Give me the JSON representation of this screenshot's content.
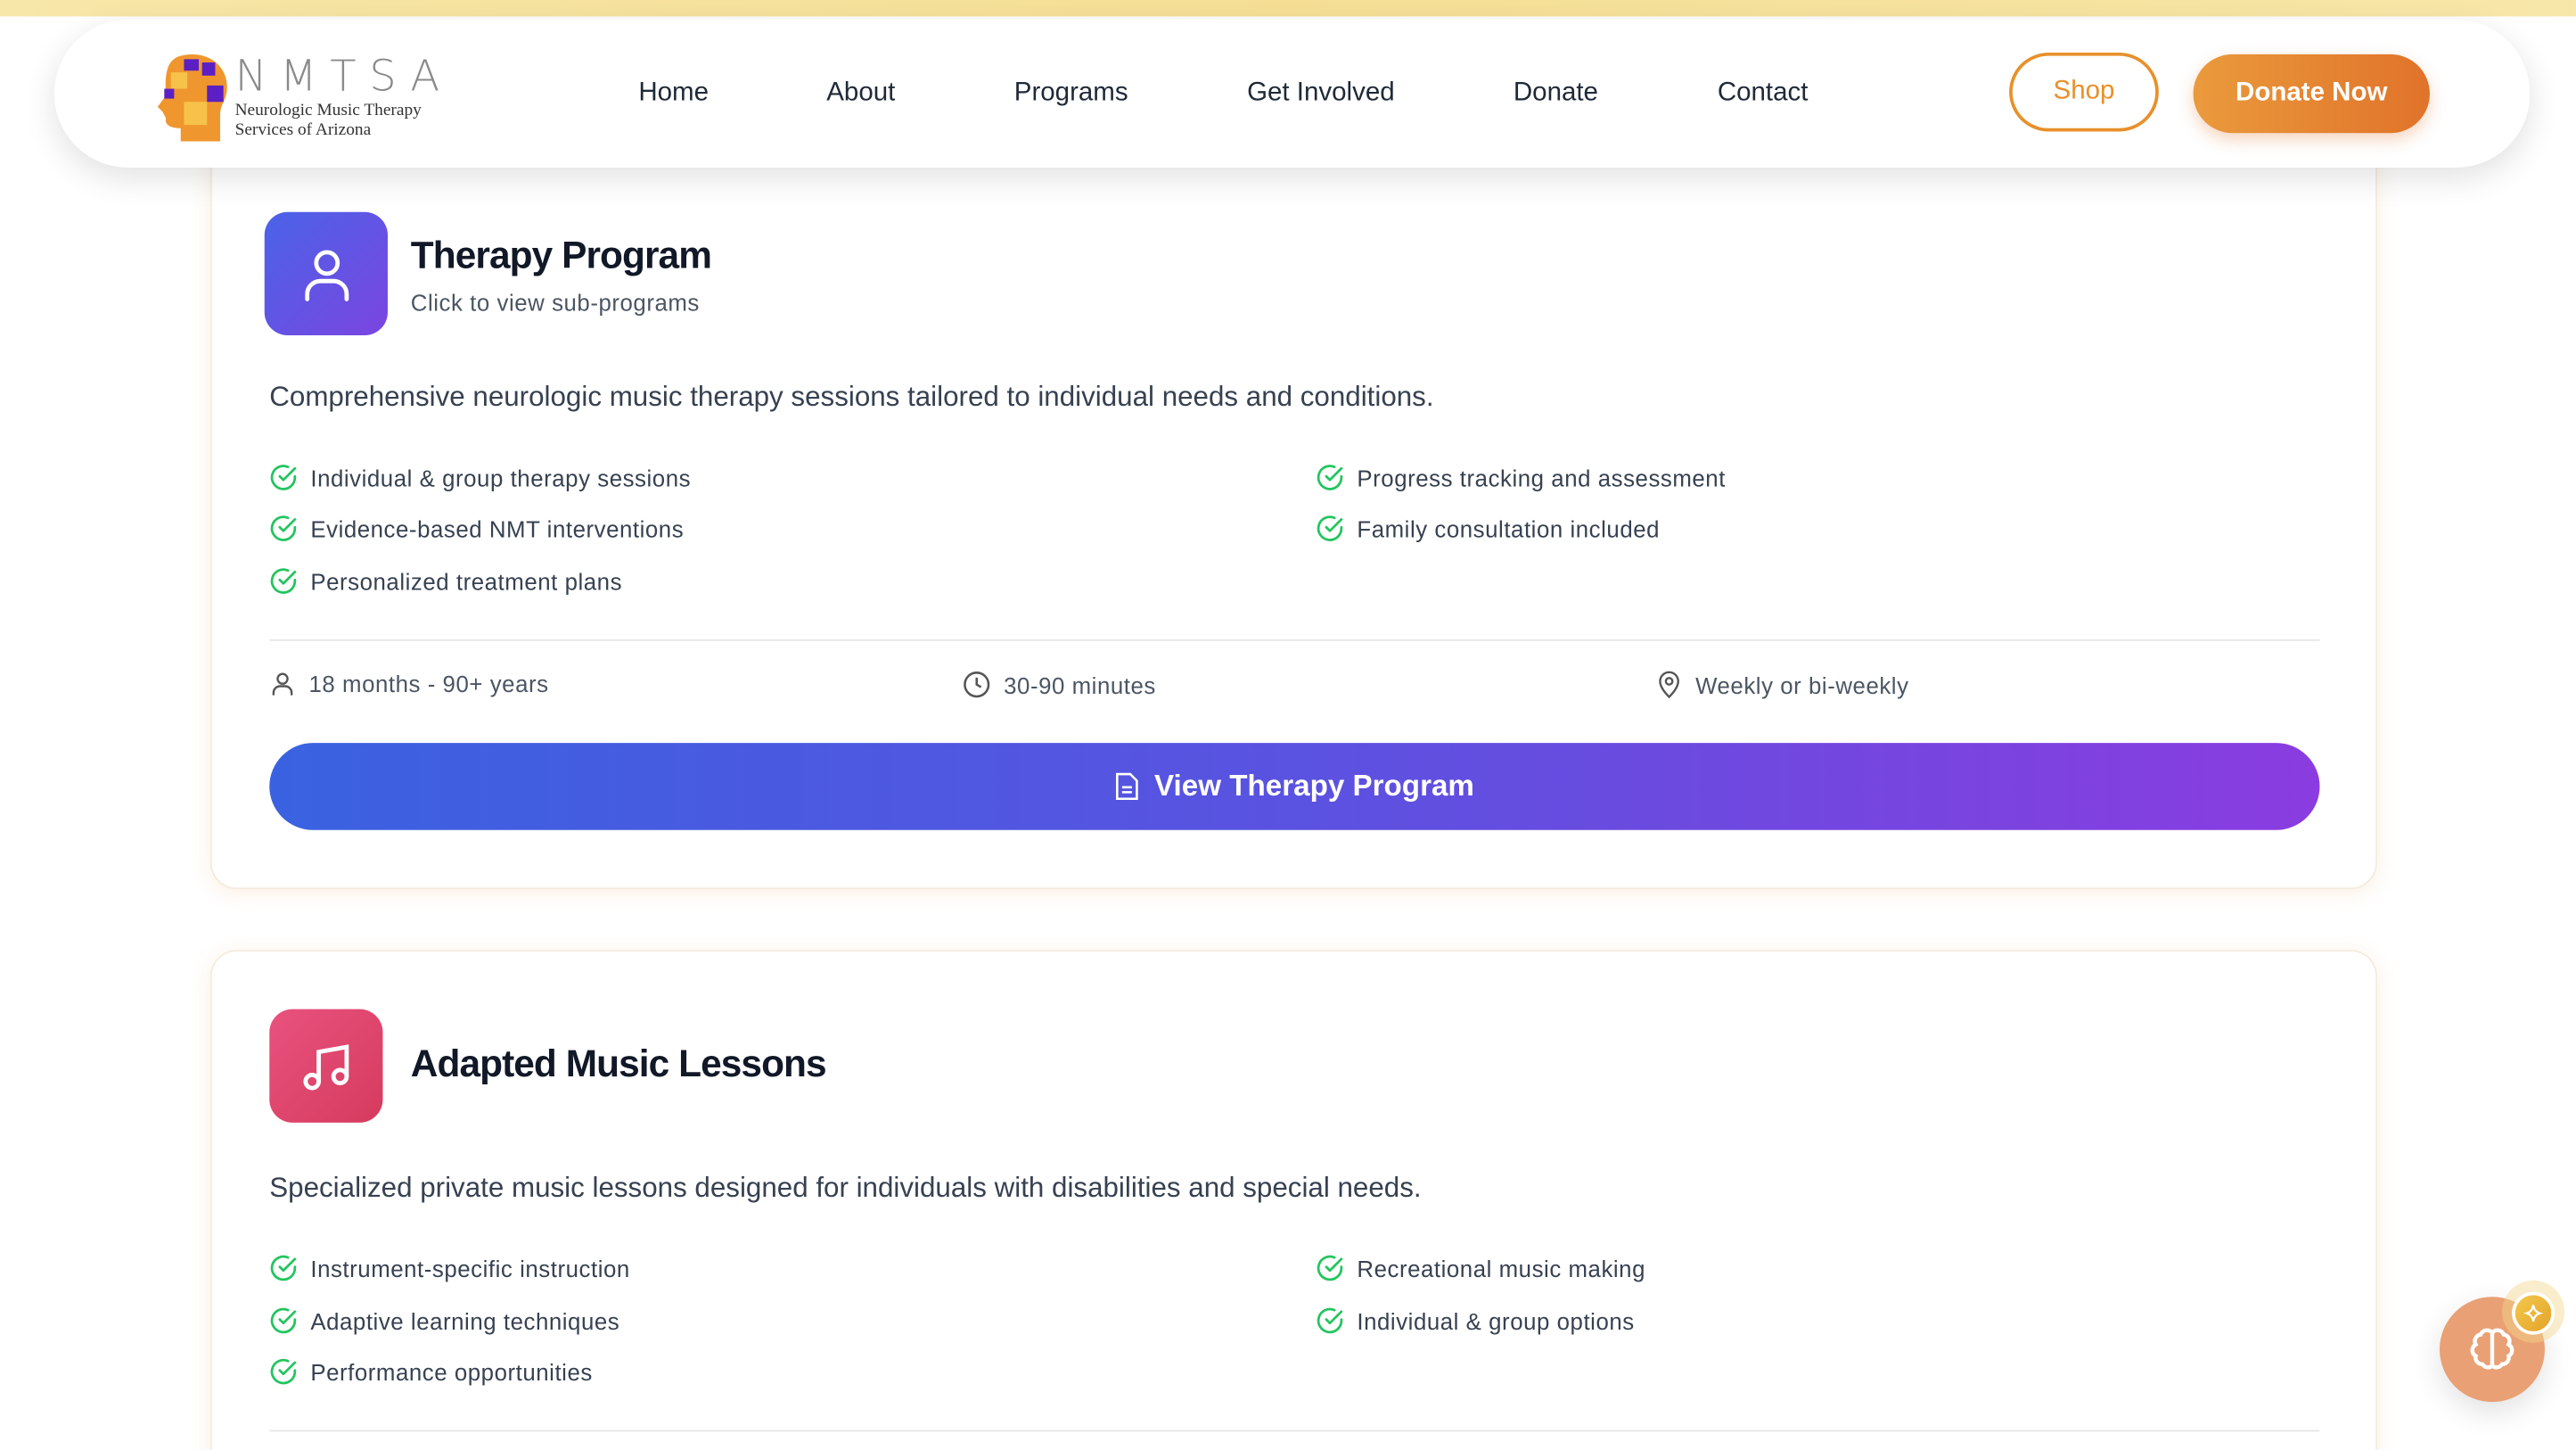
{
  "header": {
    "logo": {
      "brand": "NMTSA",
      "subtitle_line1": "Neurologic Music Therapy",
      "subtitle_line2": "Services of Arizona"
    },
    "nav": [
      "Home",
      "About",
      "Programs",
      "Get Involved",
      "Donate",
      "Contact"
    ],
    "shop_label": "Shop",
    "donate_label": "Donate Now",
    "accent": "#e8902a"
  },
  "programs": [
    {
      "title": "Therapy Program",
      "subtitle": "Click to view sub-programs",
      "icon": "user-icon",
      "description": "Comprehensive neurologic music therapy sessions tailored to individual needs and conditions.",
      "features_left": [
        "Individual & group therapy sessions",
        "Evidence-based NMT interventions",
        "Personalized treatment plans"
      ],
      "features_right": [
        "Progress tracking and assessment",
        "Family consultation included"
      ],
      "meta": {
        "ages": "18 months - 90+ years",
        "duration": "30-90 minutes",
        "frequency": "Weekly or bi-weekly"
      },
      "button_label": "View Therapy Program"
    },
    {
      "title": "Adapted Music Lessons",
      "icon": "music-note-icon",
      "description": "Specialized private music lessons designed for individuals with disabilities and special needs.",
      "features_left": [
        "Instrument-specific instruction",
        "Adaptive learning techniques",
        "Performance opportunities"
      ],
      "features_right": [
        "Recreational music making",
        "Individual & group options"
      ]
    }
  ]
}
